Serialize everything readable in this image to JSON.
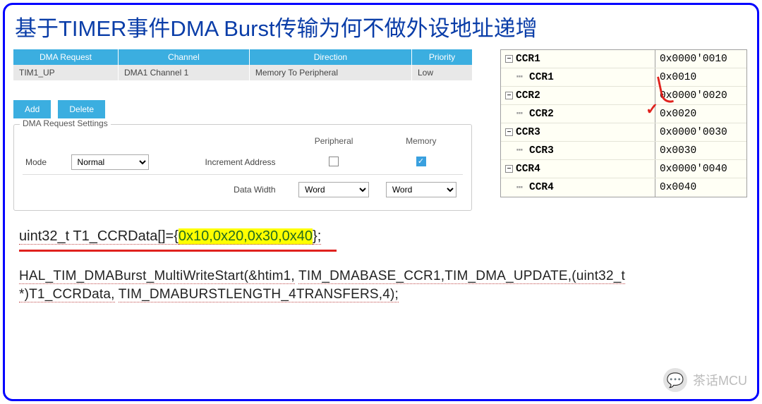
{
  "title": "基于TIMER事件DMA Burst传输为何不做外设地址递增",
  "table": {
    "headers": [
      "DMA Request",
      "Channel",
      "Direction",
      "Priority"
    ],
    "row": {
      "req": "TIM1_UP",
      "chan": "DMA1 Channel 1",
      "dir": "Memory To Peripheral",
      "prio": "Low"
    }
  },
  "buttons": {
    "add": "Add",
    "delete": "Delete"
  },
  "settings": {
    "legend": "DMA Request Settings",
    "col_periph": "Peripheral",
    "col_mem": "Memory",
    "mode_label": "Mode",
    "mode_value": "Normal",
    "inc_label": "Increment Address",
    "dw_label": "Data Width",
    "dw_periph": "Word",
    "dw_mem": "Word",
    "inc_periph_checked": false,
    "inc_mem_checked": true
  },
  "registers": {
    "rows": [
      {
        "kind": "parent",
        "name": "CCR1",
        "val": "0x0000'0010"
      },
      {
        "kind": "child",
        "name": "CCR1",
        "val": "0x0010"
      },
      {
        "kind": "parent",
        "name": "CCR2",
        "val": "0x0000'0020"
      },
      {
        "kind": "child",
        "name": "CCR2",
        "val": "0x0020"
      },
      {
        "kind": "parent",
        "name": "CCR3",
        "val": "0x0000'0030"
      },
      {
        "kind": "child",
        "name": "CCR3",
        "val": "0x0030"
      },
      {
        "kind": "parent",
        "name": "CCR4",
        "val": "0x0000'0040"
      },
      {
        "kind": "child",
        "name": "CCR4",
        "val": "0x0040"
      }
    ]
  },
  "code1": {
    "prefix": "uint32_t T1_CCRData[]={",
    "highlight": "0x10,0x20,0x30,0x40",
    "suffix": "};"
  },
  "code2": {
    "line1_a": "HAL_TIM_DMABurst_MultiWriteStart(&htim1,",
    "line1_b": "TIM_DMABASE_CCR1,TIM_DMA_UPDATE,(uint32_t",
    "line2_a": "*)T1_CCRData,",
    "line2_b": "TIM_DMABURSTLENGTH_4TRANSFERS,4);"
  },
  "watermark": {
    "text": "茶话MCU"
  },
  "colors": {
    "frame_border": "#0000ff",
    "title_color": "#0a3da8",
    "table_header_bg": "#3baee0",
    "table_row_bg": "#e8e8e8",
    "button_bg": "#3baee0",
    "checkbox_checked_bg": "#39a0df",
    "reg_bg": "#fffff5",
    "highlight_bg": "#ffff00",
    "red_annot": "#e0221e"
  }
}
